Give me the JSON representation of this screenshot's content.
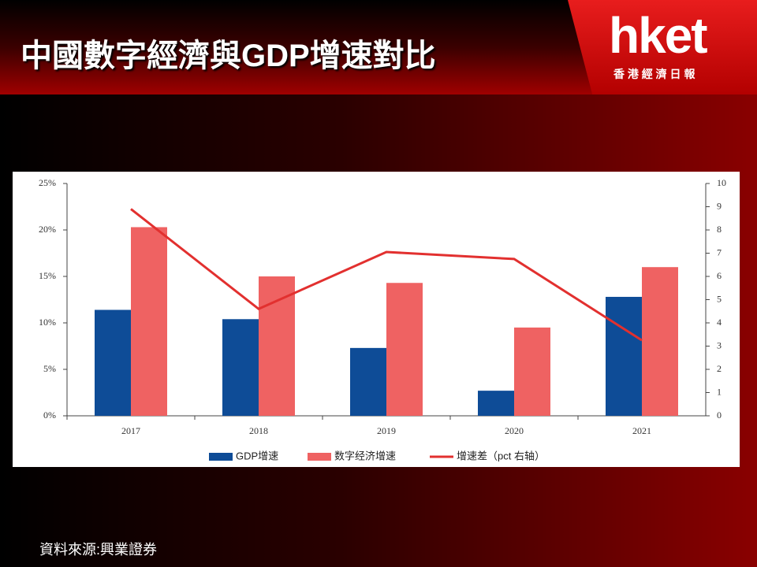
{
  "chart_data": {
    "type": "bar",
    "title": "中國數字經濟與GDP增速對比",
    "logo": {
      "name": "hket",
      "subtitle": "香 港 經 濟 日 報"
    },
    "source": "資料來源:興業證券",
    "categories": [
      "2017",
      "2018",
      "2019",
      "2020",
      "2021"
    ],
    "series": [
      {
        "name": "GDP增速",
        "type": "bar",
        "color": "#0e4c97",
        "values": [
          11.4,
          10.4,
          7.3,
          2.7,
          12.8
        ]
      },
      {
        "name": "数字经济增速",
        "type": "bar",
        "color": "#ef6262",
        "values": [
          20.3,
          15.0,
          14.3,
          9.5,
          16.0
        ]
      },
      {
        "name": "增速差（pct 右轴）",
        "type": "line",
        "axis": "y2",
        "color": "#e2302f",
        "values": [
          8.9,
          4.6,
          7.05,
          6.75,
          3.25
        ]
      }
    ],
    "ylim": [
      0,
      25
    ],
    "yticks": [
      {
        "value": 0,
        "label": "0%"
      },
      {
        "value": 5,
        "label": "5%"
      },
      {
        "value": 10,
        "label": "10%"
      },
      {
        "value": 15,
        "label": "15%"
      },
      {
        "value": 20,
        "label": "20%"
      },
      {
        "value": 25,
        "label": "25%"
      }
    ],
    "y2lim": [
      0,
      10
    ],
    "y2ticks": [
      0,
      1,
      2,
      3,
      4,
      5,
      6,
      7,
      8,
      9,
      10
    ],
    "legend": "bottom"
  }
}
